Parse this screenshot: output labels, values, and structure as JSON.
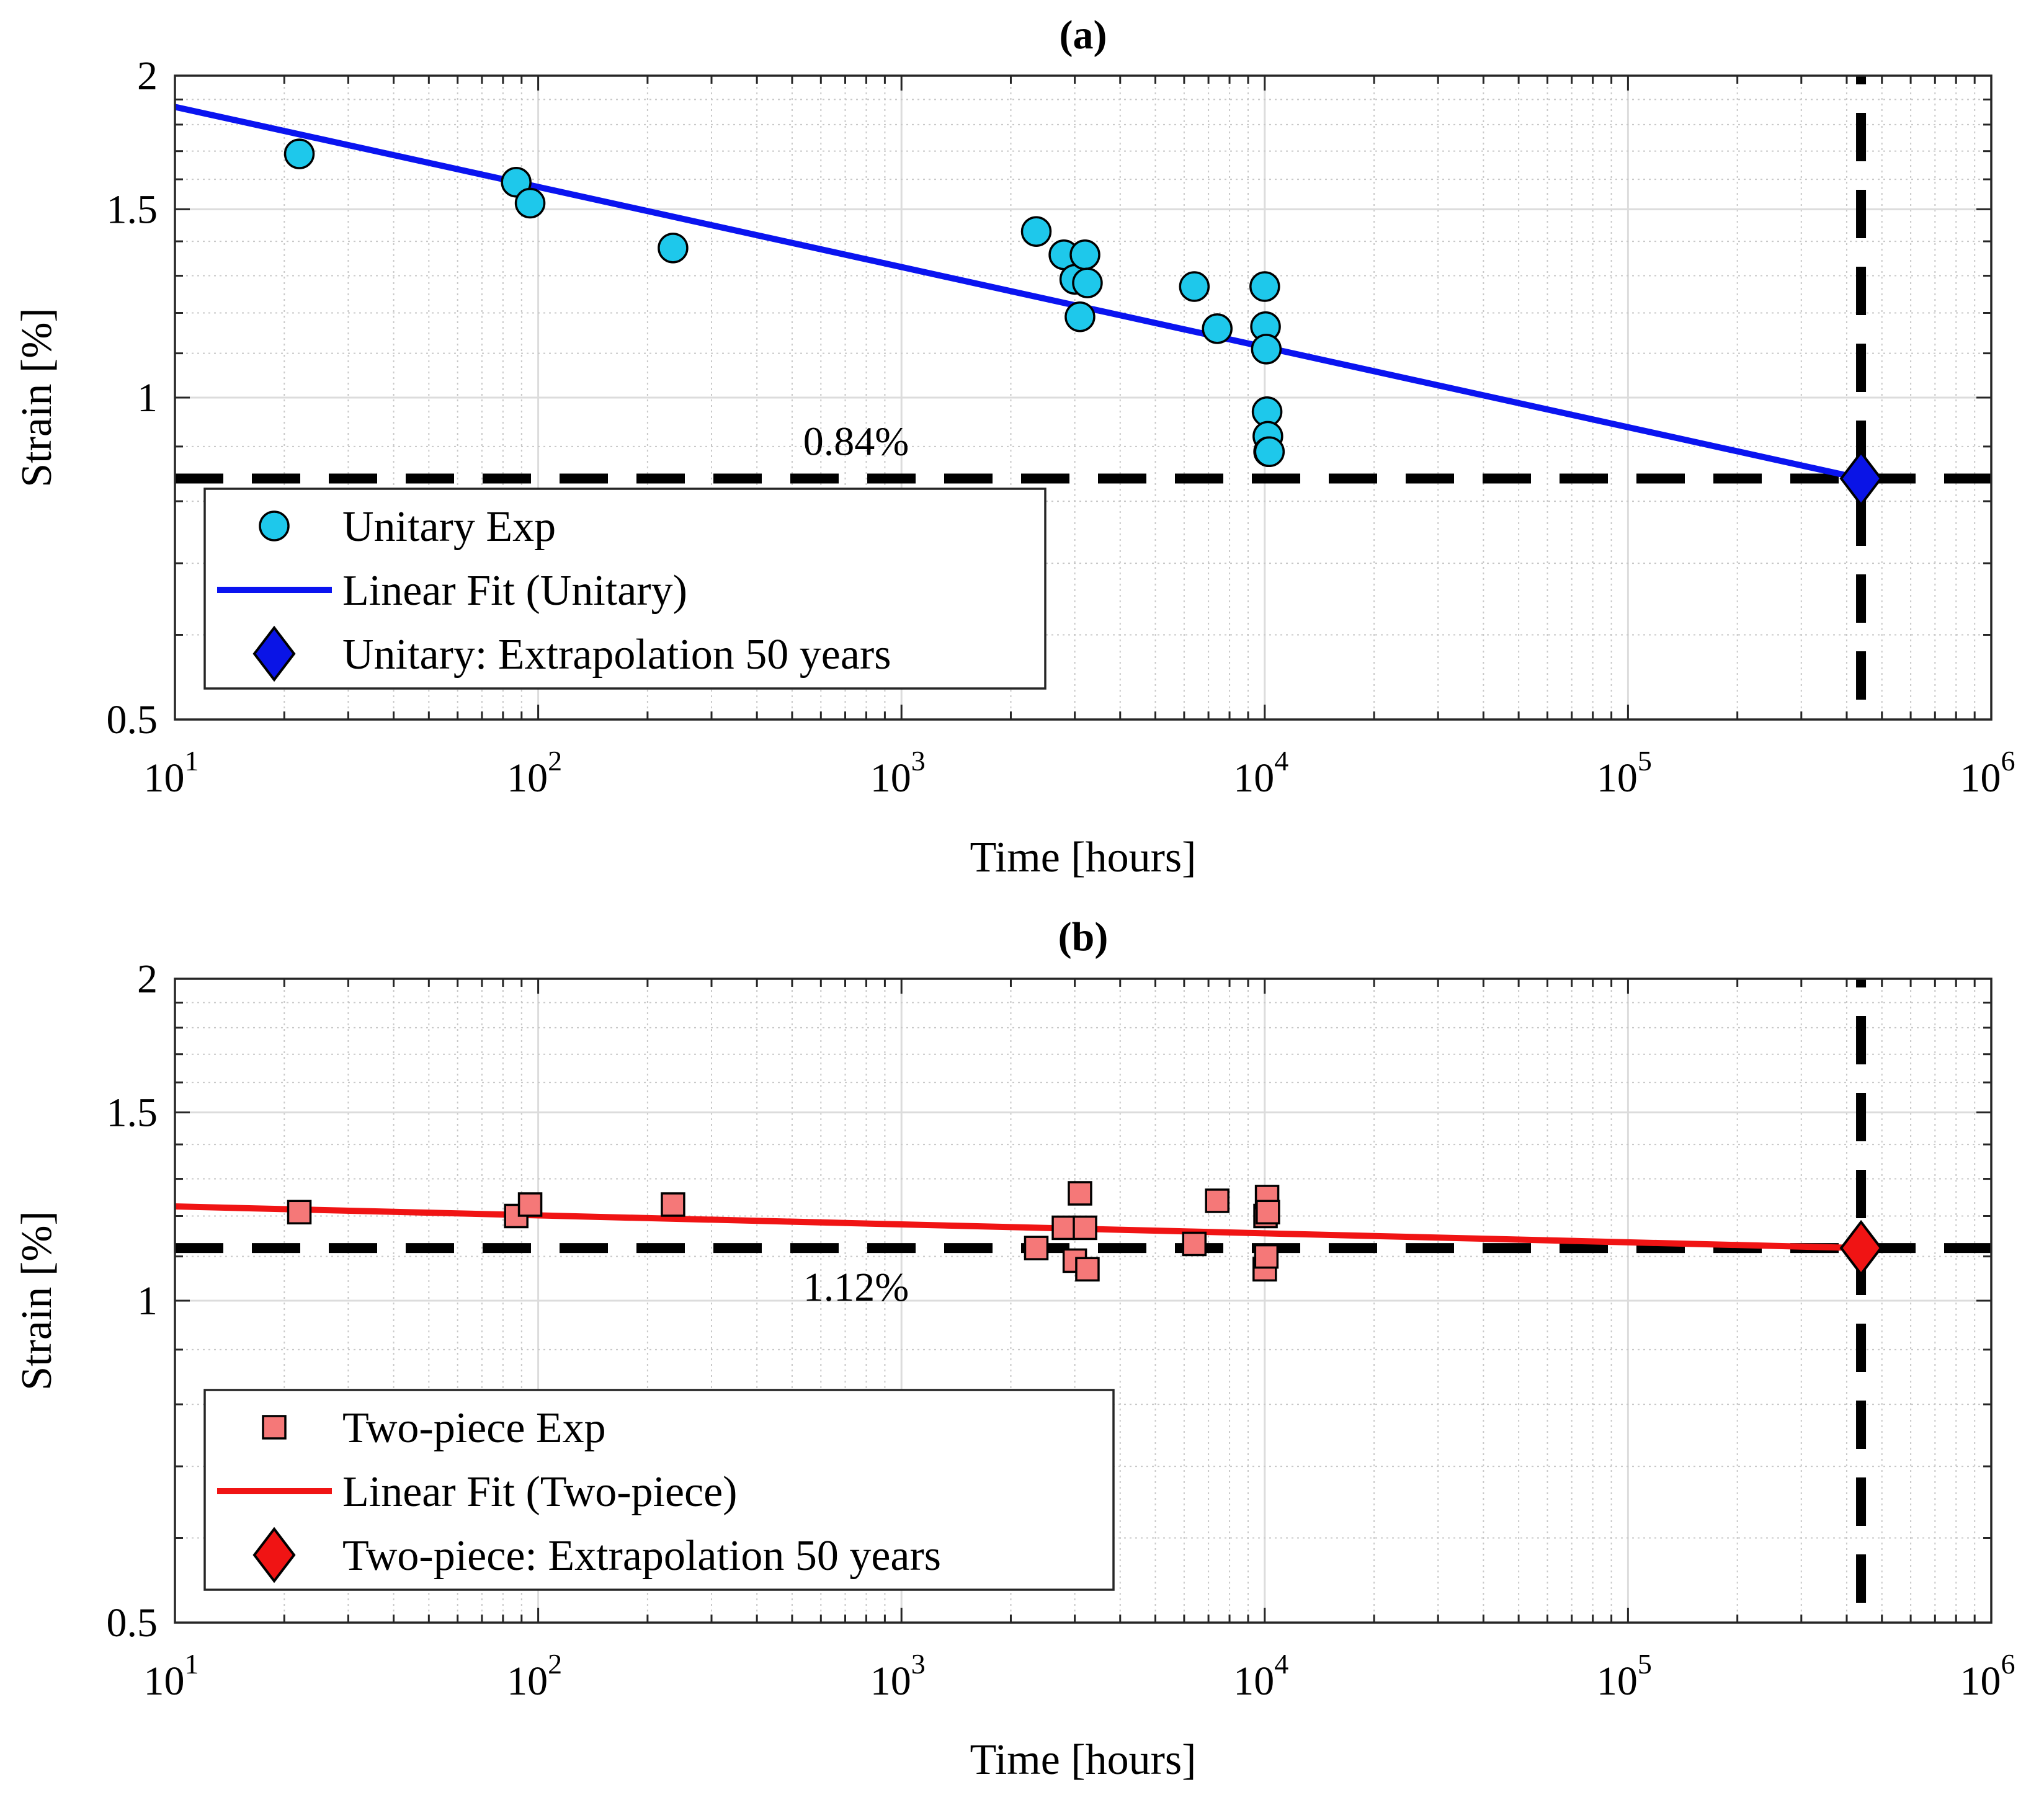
{
  "chart_data": [
    {
      "type": "scatter",
      "panel": "a",
      "title": "(a)",
      "xlabel": "Time [hours]",
      "ylabel": "Strain [%]",
      "xscale": "log",
      "yscale": "log",
      "xlim": [
        10,
        1000000
      ],
      "ylim": [
        0.5,
        2
      ],
      "x_ticks": [
        {
          "base": "10",
          "exp": "1"
        },
        {
          "base": "10",
          "exp": "2"
        },
        {
          "base": "10",
          "exp": "3"
        },
        {
          "base": "10",
          "exp": "4"
        },
        {
          "base": "10",
          "exp": "5"
        },
        {
          "base": "10",
          "exp": "6"
        }
      ],
      "y_ticks": [
        "0.5",
        "1",
        "1.5",
        "2"
      ],
      "grid": true,
      "legend_position": "lower-left",
      "series": [
        {
          "name": "Unitary Exp",
          "kind": "markers",
          "marker": "circle",
          "color": "#1EC8EB",
          "x": [
            22,
            87,
            95,
            235,
            2350,
            2800,
            3000,
            3100,
            3200,
            3250,
            6400,
            7400,
            10000,
            10050,
            10100,
            10150,
            10200,
            10250,
            10300
          ],
          "y": [
            1.69,
            1.59,
            1.52,
            1.38,
            1.43,
            1.36,
            1.29,
            1.19,
            1.36,
            1.28,
            1.27,
            1.16,
            1.27,
            1.165,
            1.11,
            0.97,
            0.92,
            0.89,
            0.89
          ]
        },
        {
          "name": "Linear Fit (Unitary)",
          "kind": "line",
          "color": "#0A14F0",
          "x": [
            10,
            438000
          ],
          "y": [
            1.87,
            0.84
          ]
        },
        {
          "name": "Unitary: Extrapolation 50 years",
          "kind": "markers",
          "marker": "diamond",
          "color": "#0A14E6",
          "x": [
            438000
          ],
          "y": [
            0.84
          ]
        }
      ],
      "reference_lines": {
        "horizontal_y": 0.84,
        "vertical_x": 438000,
        "color": "#000000"
      },
      "annotation": {
        "text": "0.84%",
        "x": 750,
        "y": 0.91
      }
    },
    {
      "type": "scatter",
      "panel": "b",
      "title": "(b)",
      "xlabel": "Time [hours]",
      "ylabel": "Strain [%]",
      "xscale": "log",
      "yscale": "log",
      "xlim": [
        10,
        1000000
      ],
      "ylim": [
        0.5,
        2
      ],
      "x_ticks": [
        {
          "base": "10",
          "exp": "1"
        },
        {
          "base": "10",
          "exp": "2"
        },
        {
          "base": "10",
          "exp": "3"
        },
        {
          "base": "10",
          "exp": "4"
        },
        {
          "base": "10",
          "exp": "5"
        },
        {
          "base": "10",
          "exp": "6"
        }
      ],
      "y_ticks": [
        "0.5",
        "1",
        "1.5",
        "2"
      ],
      "grid": true,
      "legend_position": "lower-left",
      "series": [
        {
          "name": "Two-piece Exp",
          "kind": "markers",
          "marker": "square",
          "color": "#F57878",
          "x": [
            22,
            87,
            95,
            235,
            2350,
            2800,
            3000,
            3100,
            3200,
            3250,
            6400,
            7400,
            10000,
            10050,
            10100,
            10150,
            10200
          ],
          "y": [
            1.21,
            1.2,
            1.23,
            1.23,
            1.12,
            1.17,
            1.09,
            1.26,
            1.17,
            1.07,
            1.13,
            1.24,
            1.07,
            1.2,
            1.1,
            1.25,
            1.21
          ]
        },
        {
          "name": "Linear Fit (Two-piece)",
          "kind": "line",
          "color": "#F01414",
          "x": [
            10,
            438000
          ],
          "y": [
            1.225,
            1.12
          ]
        },
        {
          "name": "Two-piece: Extrapolation 50 years",
          "kind": "markers",
          "marker": "diamond",
          "color": "#F01414",
          "x": [
            438000
          ],
          "y": [
            1.12
          ]
        }
      ],
      "reference_lines": {
        "horizontal_y": 1.12,
        "vertical_x": 438000,
        "color": "#000000"
      },
      "annotation": {
        "text": "1.12%",
        "x": 750,
        "y": 1.03
      }
    }
  ]
}
